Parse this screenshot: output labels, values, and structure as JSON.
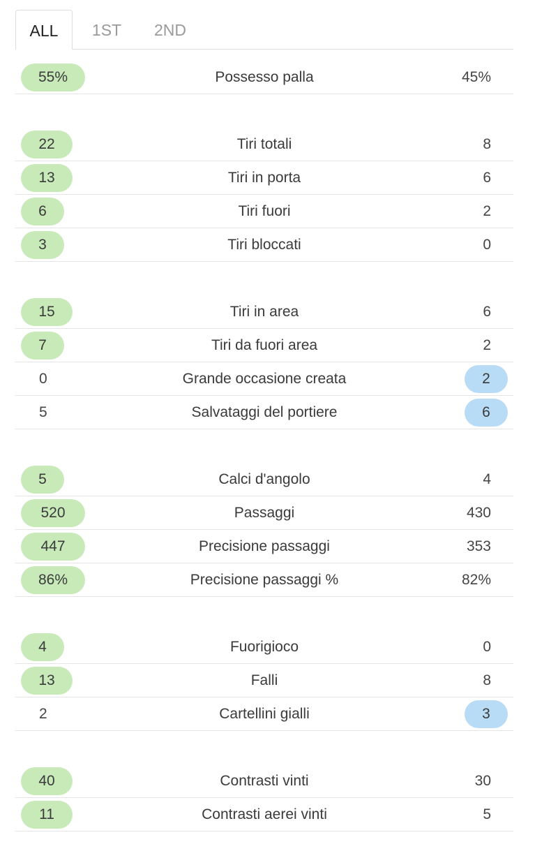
{
  "tabs": [
    {
      "label": "ALL",
      "active": true
    },
    {
      "label": "1ST",
      "active": false
    },
    {
      "label": "2ND",
      "active": false
    }
  ],
  "colors": {
    "home_highlight": "#c8eab9",
    "away_highlight": "#b8dcf6",
    "divider": "#e6e6e6"
  },
  "groups": [
    {
      "rows": [
        {
          "label": "Possesso palla",
          "home": "55%",
          "away": "45%",
          "winner": "home"
        }
      ]
    },
    {
      "rows": [
        {
          "label": "Tiri totali",
          "home": "22",
          "away": "8",
          "winner": "home"
        },
        {
          "label": "Tiri in porta",
          "home": "13",
          "away": "6",
          "winner": "home"
        },
        {
          "label": "Tiri fuori",
          "home": "6",
          "away": "2",
          "winner": "home"
        },
        {
          "label": "Tiri bloccati",
          "home": "3",
          "away": "0",
          "winner": "home"
        }
      ]
    },
    {
      "rows": [
        {
          "label": "Tiri in area",
          "home": "15",
          "away": "6",
          "winner": "home"
        },
        {
          "label": "Tiri da fuori area",
          "home": "7",
          "away": "2",
          "winner": "home"
        },
        {
          "label": "Grande occasione creata",
          "home": "0",
          "away": "2",
          "winner": "away"
        },
        {
          "label": "Salvataggi del portiere",
          "home": "5",
          "away": "6",
          "winner": "away"
        }
      ]
    },
    {
      "rows": [
        {
          "label": "Calci d'angolo",
          "home": "5",
          "away": "4",
          "winner": "home"
        },
        {
          "label": "Passaggi",
          "home": "520",
          "away": "430",
          "winner": "home"
        },
        {
          "label": "Precisione passaggi",
          "home": "447",
          "away": "353",
          "winner": "home"
        },
        {
          "label": "Precisione passaggi %",
          "home": "86%",
          "away": "82%",
          "winner": "home"
        }
      ]
    },
    {
      "rows": [
        {
          "label": "Fuorigioco",
          "home": "4",
          "away": "0",
          "winner": "home"
        },
        {
          "label": "Falli",
          "home": "13",
          "away": "8",
          "winner": "home"
        },
        {
          "label": "Cartellini gialli",
          "home": "2",
          "away": "3",
          "winner": "away"
        }
      ]
    },
    {
      "rows": [
        {
          "label": "Contrasti vinti",
          "home": "40",
          "away": "30",
          "winner": "home"
        },
        {
          "label": "Contrasti aerei vinti",
          "home": "11",
          "away": "5",
          "winner": "home"
        }
      ]
    }
  ]
}
